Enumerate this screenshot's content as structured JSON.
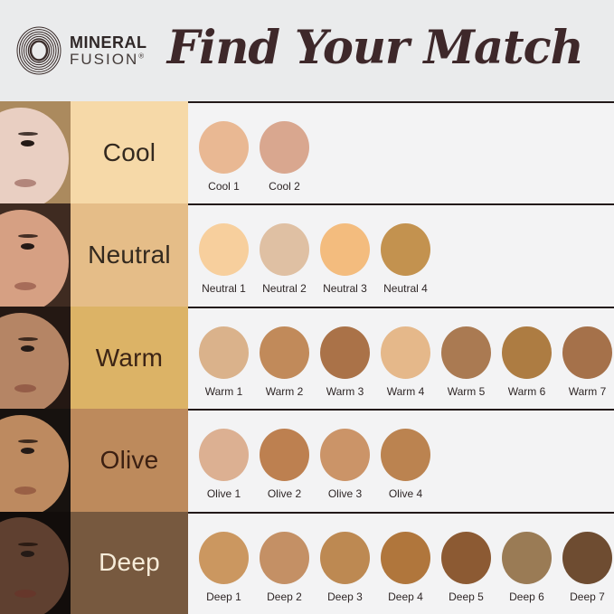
{
  "header": {
    "brand": {
      "line1": "MINERAL",
      "line2": "FUSION",
      "registered": "®"
    },
    "title": "Find Your Match"
  },
  "colors": {
    "page_bg": "#eaebec",
    "panel_bg": "#f3f3f4",
    "divider": "#221919",
    "title_color": "#3e282a"
  },
  "rows": [
    {
      "id": "cool",
      "label": "Cool",
      "label_bg": "#f6d9a8",
      "label_text_color": "#33291f",
      "face": {
        "hair": "#ab8a5e",
        "skin": "#e9cfc2"
      },
      "swatches": [
        {
          "label": "Cool 1",
          "color": "#e9b893"
        },
        {
          "label": "Cool 2",
          "color": "#d9a78f"
        }
      ]
    },
    {
      "id": "neutral",
      "label": "Neutral",
      "label_bg": "#e5bd88",
      "label_text_color": "#33291f",
      "face": {
        "hair": "#3f2b21",
        "skin": "#d6a083"
      },
      "swatches": [
        {
          "label": "Neutral 1",
          "color": "#f7cf9d"
        },
        {
          "label": "Neutral 2",
          "color": "#dfc0a3"
        },
        {
          "label": "Neutral 3",
          "color": "#f3bc7e"
        },
        {
          "label": "Neutral 4",
          "color": "#c3924f"
        }
      ]
    },
    {
      "id": "warm",
      "label": "Warm",
      "label_bg": "#dcb366",
      "label_text_color": "#3c2415",
      "face": {
        "hair": "#241813",
        "skin": "#b58565"
      },
      "swatches": [
        {
          "label": "Warm 1",
          "color": "#dab28b"
        },
        {
          "label": "Warm 2",
          "color": "#c18a5a"
        },
        {
          "label": "Warm 3",
          "color": "#aa7248"
        },
        {
          "label": "Warm 4",
          "color": "#e5b88a"
        },
        {
          "label": "Warm 5",
          "color": "#aa7a52"
        },
        {
          "label": "Warm 6",
          "color": "#ad7c42"
        },
        {
          "label": "Warm 7",
          "color": "#a5714a"
        }
      ]
    },
    {
      "id": "olive",
      "label": "Olive",
      "label_bg": "#bd8a5c",
      "label_text_color": "#3c2012",
      "face": {
        "hair": "#17120f",
        "skin": "#bd8a60"
      },
      "swatches": [
        {
          "label": "Olive 1",
          "color": "#dcb092"
        },
        {
          "label": "Olive 2",
          "color": "#bd8050"
        },
        {
          "label": "Olive 3",
          "color": "#cb9468"
        },
        {
          "label": "Olive 4",
          "color": "#bb8350"
        }
      ]
    },
    {
      "id": "deep",
      "label": "Deep",
      "label_bg": "#77593f",
      "label_text_color": "#f6ecd9",
      "face": {
        "hair": "#120d0b",
        "skin": "#5f4030"
      },
      "swatches": [
        {
          "label": "Deep 1",
          "color": "#cb9760"
        },
        {
          "label": "Deep 2",
          "color": "#c49065"
        },
        {
          "label": "Deep 3",
          "color": "#bd8952"
        },
        {
          "label": "Deep 4",
          "color": "#b0763c"
        },
        {
          "label": "Deep 5",
          "color": "#8c5a33"
        },
        {
          "label": "Deep 6",
          "color": "#9a7b55"
        },
        {
          "label": "Deep 7",
          "color": "#6e4c31"
        }
      ]
    }
  ]
}
